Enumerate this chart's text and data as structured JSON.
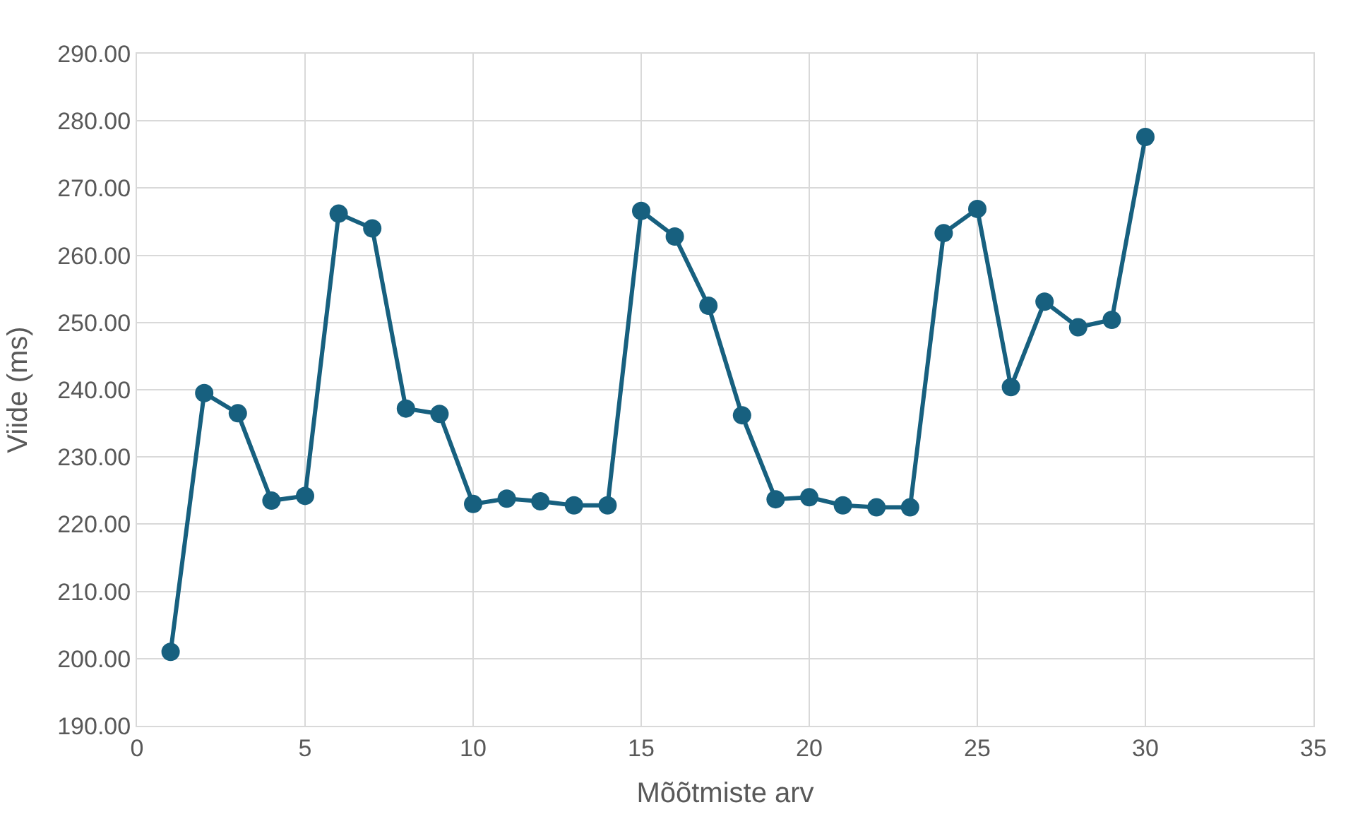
{
  "chart_data": {
    "type": "line",
    "xlabel": "Mõõtmiste arv",
    "ylabel": "Viide (ms)",
    "x": [
      1,
      2,
      3,
      4,
      5,
      6,
      7,
      8,
      9,
      10,
      11,
      12,
      13,
      14,
      15,
      16,
      17,
      18,
      19,
      20,
      21,
      22,
      23,
      24,
      25,
      26,
      27,
      28,
      29,
      30
    ],
    "series": [
      {
        "color": "#17607f",
        "values": [
          201.0,
          239.5,
          236.5,
          223.5,
          224.2,
          266.2,
          264.0,
          237.2,
          236.4,
          223.0,
          223.8,
          223.4,
          222.8,
          222.8,
          266.6,
          262.8,
          252.5,
          236.2,
          223.7,
          224.0,
          222.8,
          222.5,
          222.5,
          263.3,
          266.9,
          240.4,
          253.1,
          249.3,
          250.4,
          277.6
        ]
      }
    ],
    "xlim": [
      0,
      35
    ],
    "xticks": [
      0,
      5,
      10,
      15,
      20,
      25,
      30,
      35
    ],
    "ylim": [
      190,
      290
    ],
    "yticks": [
      {
        "value": 190,
        "label": "190.00"
      },
      {
        "value": 200,
        "label": "200.00"
      },
      {
        "value": 210,
        "label": "210.00"
      },
      {
        "value": 220,
        "label": "220.00"
      },
      {
        "value": 230,
        "label": "230.00"
      },
      {
        "value": 240,
        "label": "240.00"
      },
      {
        "value": 250,
        "label": "250.00"
      },
      {
        "value": 260,
        "label": "260.00"
      },
      {
        "value": 270,
        "label": "270.00"
      },
      {
        "value": 280,
        "label": "280.00"
      },
      {
        "value": 290,
        "label": "290.00"
      }
    ],
    "grid": true,
    "marker": "circle",
    "line_style": "solid"
  }
}
